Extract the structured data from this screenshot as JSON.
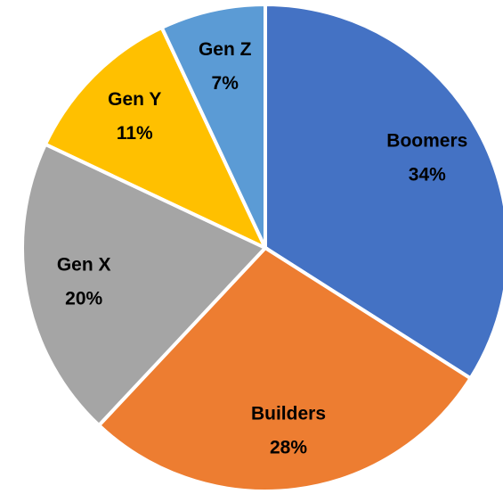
{
  "chart_data": {
    "type": "pie",
    "categories": [
      "Boomers",
      "Builders",
      "Gen X",
      "Gen Y",
      "Gen Z"
    ],
    "values": [
      34,
      28,
      20,
      11,
      7
    ],
    "value_labels": [
      "34%",
      "28%",
      "20%",
      "11%",
      "7%"
    ],
    "colors": [
      "#4472c4",
      "#ed7d31",
      "#a5a5a5",
      "#ffc000",
      "#5b9bd5"
    ]
  }
}
